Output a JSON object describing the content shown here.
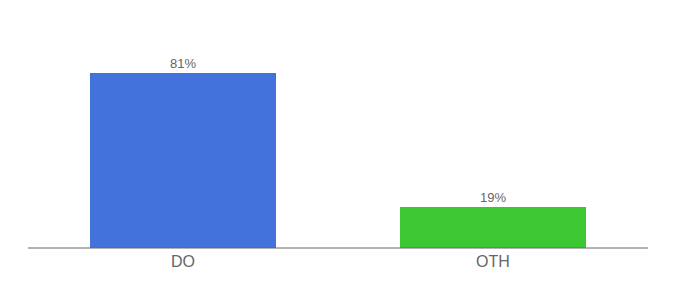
{
  "chart_data": {
    "type": "bar",
    "categories": [
      "DO",
      "OTH"
    ],
    "values": [
      81,
      19
    ],
    "value_labels": [
      "81%",
      "19%"
    ],
    "colors": [
      "#4472dd",
      "#3cc832"
    ],
    "ylim": [
      0,
      100
    ],
    "data_labels": true,
    "tick_labels": "x",
    "grid": false
  }
}
